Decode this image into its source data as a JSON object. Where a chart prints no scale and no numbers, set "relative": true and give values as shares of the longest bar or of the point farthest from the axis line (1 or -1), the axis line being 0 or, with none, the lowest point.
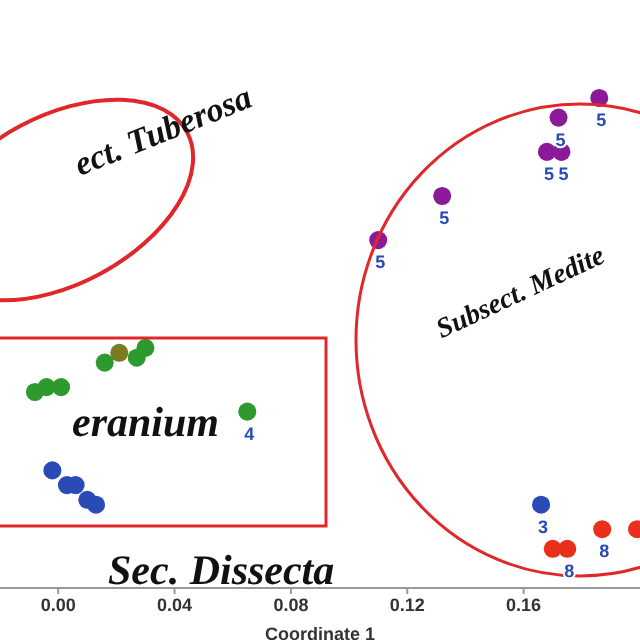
{
  "chart_data": {
    "type": "scatter",
    "xlabel": "Coordinate 1",
    "relative": true,
    "marker": "circle",
    "xlim": [
      -0.02,
      0.2
    ],
    "xticks": [
      {
        "value": 0,
        "label": "0.00"
      },
      {
        "value": 0.04,
        "label": "0.04"
      },
      {
        "value": 0.08,
        "label": "0.08"
      },
      {
        "value": 0.12,
        "label": "0.12"
      },
      {
        "value": 0.16,
        "label": "0.16"
      }
    ],
    "annotations": [
      "ect. Tuberosa",
      "Subsect. Medite",
      "eranium",
      "Sec. Dissecta",
      {
        "text": "5",
        "x": 0.186,
        "y": 1.0
      },
      {
        "text": "5",
        "x": 0.172,
        "y": 0.96
      },
      {
        "text": "5",
        "x": 0.168,
        "y": 0.89
      },
      {
        "text": "5",
        "x": 0.173,
        "y": 0.89
      },
      {
        "text": "5",
        "x": 0.132,
        "y": 0.8
      },
      {
        "text": "5",
        "x": 0.11,
        "y": 0.71
      },
      {
        "text": "4",
        "x": 0.065,
        "y": 0.36
      },
      {
        "text": "3",
        "x": 0.166,
        "y": 0.17
      },
      {
        "text": "8",
        "x": 0.187,
        "y": 0.12
      },
      {
        "text": "8",
        "x": 0.175,
        "y": 0.08
      }
    ],
    "series": [
      {
        "color": "#8b1a9a",
        "x": [
          0.186,
          0.172,
          0.168,
          0.173,
          0.132,
          0.11
        ],
        "values": [
          1.0,
          0.96,
          0.89,
          0.89,
          0.8,
          0.71
        ]
      },
      {
        "color": "#2e9a2e",
        "x": [
          0.016,
          0.027,
          0.03,
          -0.008,
          -0.004,
          0.001,
          0.065
        ],
        "values": [
          0.46,
          0.47,
          0.49,
          0.4,
          0.41,
          0.41,
          0.36
        ]
      },
      {
        "color": "#7a7a20",
        "x": [
          0.021
        ],
        "values": [
          0.48
        ]
      },
      {
        "color": "#2a4ab8",
        "x": [
          -0.002,
          0.003,
          0.006,
          0.01,
          0.013,
          0.166
        ],
        "values": [
          0.24,
          0.21,
          0.21,
          0.18,
          0.17,
          0.17
        ]
      },
      {
        "color": "#e8301a",
        "x": [
          0.187,
          0.199,
          0.17,
          0.175
        ],
        "values": [
          0.12,
          0.12,
          0.08,
          0.08
        ]
      }
    ]
  }
}
